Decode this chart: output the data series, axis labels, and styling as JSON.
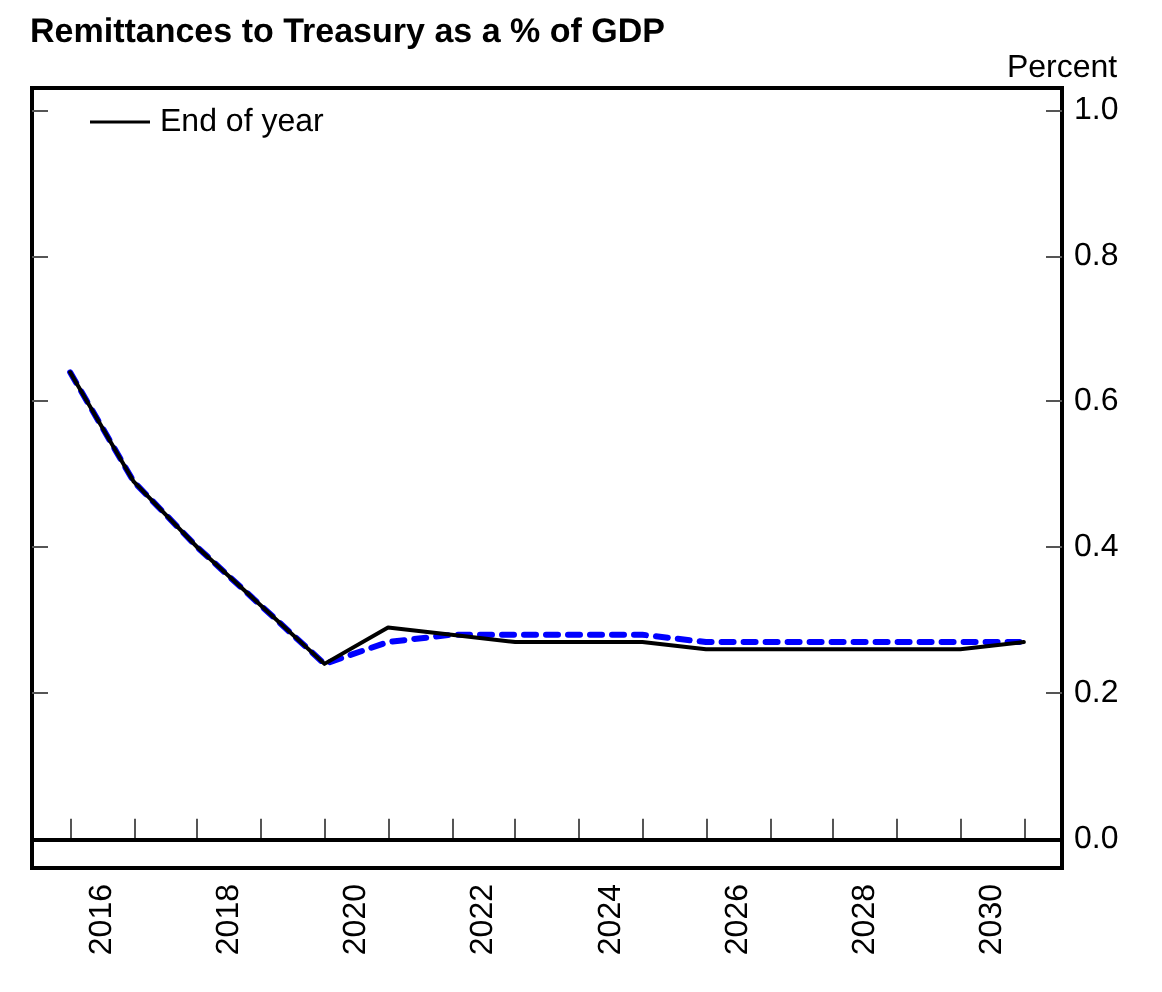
{
  "chart_data": {
    "type": "line",
    "title": "Remittances to Treasury as a % of GDP",
    "ylabel": "Percent",
    "x": [
      2016,
      2017,
      2018,
      2019,
      2020,
      2021,
      2022,
      2023,
      2024,
      2025,
      2026,
      2027,
      2028,
      2029,
      2030,
      2031
    ],
    "series": [
      {
        "name": "End of year",
        "color": "#000000",
        "line_style": "solid",
        "values": [
          0.64,
          0.49,
          0.4,
          0.32,
          0.24,
          0.29,
          0.28,
          0.27,
          0.27,
          0.27,
          0.26,
          0.26,
          0.26,
          0.26,
          0.26,
          0.27
        ]
      },
      {
        "color": "#0000ff",
        "line_style": "dashed",
        "values": [
          0.64,
          0.49,
          0.4,
          0.32,
          0.24,
          0.27,
          0.28,
          0.28,
          0.28,
          0.28,
          0.27,
          0.27,
          0.27,
          0.27,
          0.27,
          0.27
        ]
      }
    ],
    "xlim": [
      2015.4,
      2031.6
    ],
    "xticks": [
      {
        "value": 2016,
        "label": null
      },
      {
        "value": 2016.5,
        "label": "2016"
      },
      {
        "value": 2017,
        "label": null
      },
      {
        "value": 2018,
        "label": null
      },
      {
        "value": 2018.5,
        "label": "2018"
      },
      {
        "value": 2019,
        "label": null
      },
      {
        "value": 2020,
        "label": null
      },
      {
        "value": 2020.5,
        "label": "2020"
      },
      {
        "value": 2021,
        "label": null
      },
      {
        "value": 2022,
        "label": null
      },
      {
        "value": 2022.5,
        "label": "2022"
      },
      {
        "value": 2023,
        "label": null
      },
      {
        "value": 2024,
        "label": null
      },
      {
        "value": 2024.5,
        "label": "2024"
      },
      {
        "value": 2025,
        "label": null
      },
      {
        "value": 2026,
        "label": null
      },
      {
        "value": 2026.5,
        "label": "2026"
      },
      {
        "value": 2027,
        "label": null
      },
      {
        "value": 2028,
        "label": null
      },
      {
        "value": 2028.5,
        "label": "2028"
      },
      {
        "value": 2029,
        "label": null
      },
      {
        "value": 2030,
        "label": null
      },
      {
        "value": 2030.5,
        "label": "2030"
      },
      {
        "value": 2031,
        "label": null
      }
    ],
    "ylim": [
      -0.04,
      1.03
    ],
    "yticks": [
      {
        "value": 0,
        "label": "0.0"
      },
      {
        "value": 0.2,
        "label": "0.2"
      },
      {
        "value": 0.4,
        "label": "0.4"
      },
      {
        "value": 0.6,
        "label": "0.6"
      },
      {
        "value": 0.8,
        "label": "0.8"
      },
      {
        "value": 1.0,
        "label": "1.0"
      }
    ],
    "ref_lines": [
      {
        "axis": "y",
        "value": 0,
        "color": "#000000"
      }
    ],
    "legend": "top left",
    "grid": false,
    "marker": "none"
  }
}
